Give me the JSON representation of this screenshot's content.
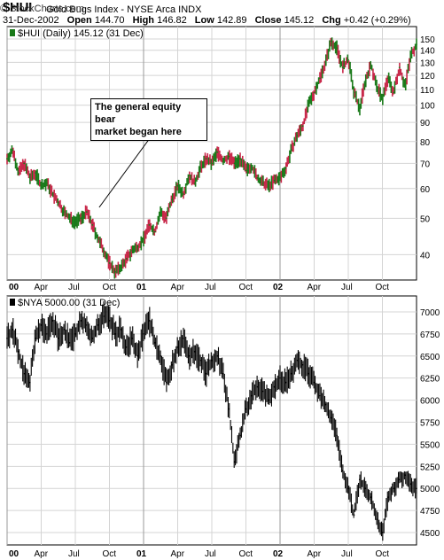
{
  "header": {
    "symbol": "$HUI",
    "description": "Gold Bugs Index - NYSE Arca INDX",
    "brand": "© StockCharts.com",
    "date": "31-Dec-2002",
    "open_label": "Open",
    "open": "144.70",
    "high_label": "High",
    "high": "146.82",
    "low_label": "Low",
    "low": "142.89",
    "close_label": "Close",
    "close": "145.12",
    "chg_label": "Chg",
    "chg": "+0.42 (+0.29%)"
  },
  "annotation": {
    "line1": "The general equity bear",
    "line2": "market began here"
  },
  "colors": {
    "up": "#1a7a1a",
    "down": "#c8284a",
    "nya": "#000000",
    "grid": "#d4d4d4",
    "frame": "#000000"
  },
  "chart_data": [
    {
      "type": "line",
      "legend": "$HUI (Daily) 145.12 (31 Dec)",
      "scale": "log",
      "ylim": [
        35,
        155
      ],
      "yticks": [
        40,
        50,
        60,
        70,
        80,
        90,
        100,
        110,
        120,
        130,
        140,
        150
      ],
      "x_tick_labels": [
        "00",
        "Apr",
        "Jul",
        "Oct",
        "01",
        "Apr",
        "Jul",
        "Oct",
        "02",
        "Apr",
        "Jul",
        "Oct"
      ],
      "x_tick_months": [
        0,
        3,
        6,
        9,
        12,
        15,
        18,
        21,
        24,
        27,
        30,
        33
      ],
      "x_range_months": [
        0,
        36
      ],
      "month": [
        0,
        0.5,
        1,
        1.5,
        2,
        2.5,
        3,
        3.5,
        4,
        4.5,
        5,
        5.5,
        6,
        6.5,
        7,
        7.5,
        8,
        8.5,
        9,
        9.5,
        10,
        10.5,
        11,
        11.5,
        12,
        12.5,
        13,
        13.5,
        14,
        14.5,
        15,
        15.5,
        16,
        16.5,
        17,
        17.5,
        18,
        18.5,
        19,
        19.5,
        20,
        20.5,
        21,
        21.5,
        22,
        22.5,
        23,
        23.5,
        24,
        24.5,
        25,
        25.5,
        26,
        26.5,
        27,
        27.5,
        28,
        28.5,
        29,
        29.5,
        30,
        30.5,
        31,
        31.5,
        32,
        32.5,
        33,
        33.5,
        34,
        34.5,
        35,
        35.5,
        36
      ],
      "values": [
        72,
        76,
        66,
        70,
        64,
        66,
        61,
        62,
        58,
        55,
        52,
        50,
        49,
        50,
        52,
        48,
        44,
        41,
        38,
        36,
        37,
        39,
        41,
        42,
        44,
        48,
        46,
        52,
        50,
        56,
        61,
        58,
        65,
        62,
        68,
        72,
        70,
        75,
        71,
        73,
        70,
        72,
        67,
        69,
        64,
        62,
        61,
        63,
        64,
        68,
        76,
        83,
        88,
        100,
        108,
        118,
        130,
        148,
        142,
        126,
        132,
        108,
        98,
        116,
        128,
        112,
        104,
        118,
        108,
        126,
        112,
        136,
        145
      ]
    },
    {
      "type": "line",
      "legend": "$NYA 5000.00 (31 Dec)",
      "ylim": [
        4400,
        7100
      ],
      "yticks": [
        4500,
        4750,
        5000,
        5250,
        5500,
        5750,
        6000,
        6250,
        6500,
        6750,
        7000
      ],
      "x_tick_labels": [
        "00",
        "Apr",
        "Jul",
        "Oct",
        "01",
        "Apr",
        "Jul",
        "Oct",
        "02",
        "Apr",
        "Jul",
        "Oct"
      ],
      "x_tick_months": [
        0,
        3,
        6,
        9,
        12,
        15,
        18,
        21,
        24,
        27,
        30,
        33
      ],
      "x_range_months": [
        0,
        36
      ],
      "month": [
        0,
        0.5,
        1,
        1.5,
        2,
        2.5,
        3,
        3.5,
        4,
        4.5,
        5,
        5.5,
        6,
        6.5,
        7,
        7.5,
        8,
        8.5,
        9,
        9.5,
        10,
        10.5,
        11,
        11.5,
        12,
        12.5,
        13,
        13.5,
        14,
        14.5,
        15,
        15.5,
        16,
        16.5,
        17,
        17.5,
        18,
        18.5,
        19,
        19.5,
        20,
        20.5,
        21,
        21.5,
        22,
        22.5,
        23,
        23.5,
        24,
        24.5,
        25,
        25.5,
        26,
        26.5,
        27,
        27.5,
        28,
        28.5,
        29,
        29.5,
        30,
        30.5,
        31,
        31.5,
        32,
        32.5,
        33,
        33.5,
        34,
        34.5,
        35,
        35.5,
        36
      ],
      "values": [
        6700,
        6800,
        6550,
        6300,
        6200,
        6700,
        6850,
        6750,
        6900,
        6700,
        6800,
        6650,
        6750,
        6900,
        6850,
        6700,
        6850,
        6950,
        6900,
        6750,
        6800,
        6600,
        6700,
        6500,
        6750,
        6900,
        6650,
        6500,
        6200,
        6400,
        6600,
        6700,
        6500,
        6550,
        6450,
        6300,
        6450,
        6500,
        6300,
        5900,
        5300,
        5600,
        5900,
        6050,
        6150,
        6100,
        6000,
        6150,
        6250,
        6200,
        6300,
        6450,
        6400,
        6300,
        6200,
        6050,
        5950,
        5800,
        5600,
        5200,
        5000,
        4700,
        5100,
        5000,
        4900,
        4650,
        4500,
        4900,
        5000,
        5100,
        5150,
        5050,
        5000
      ]
    }
  ]
}
